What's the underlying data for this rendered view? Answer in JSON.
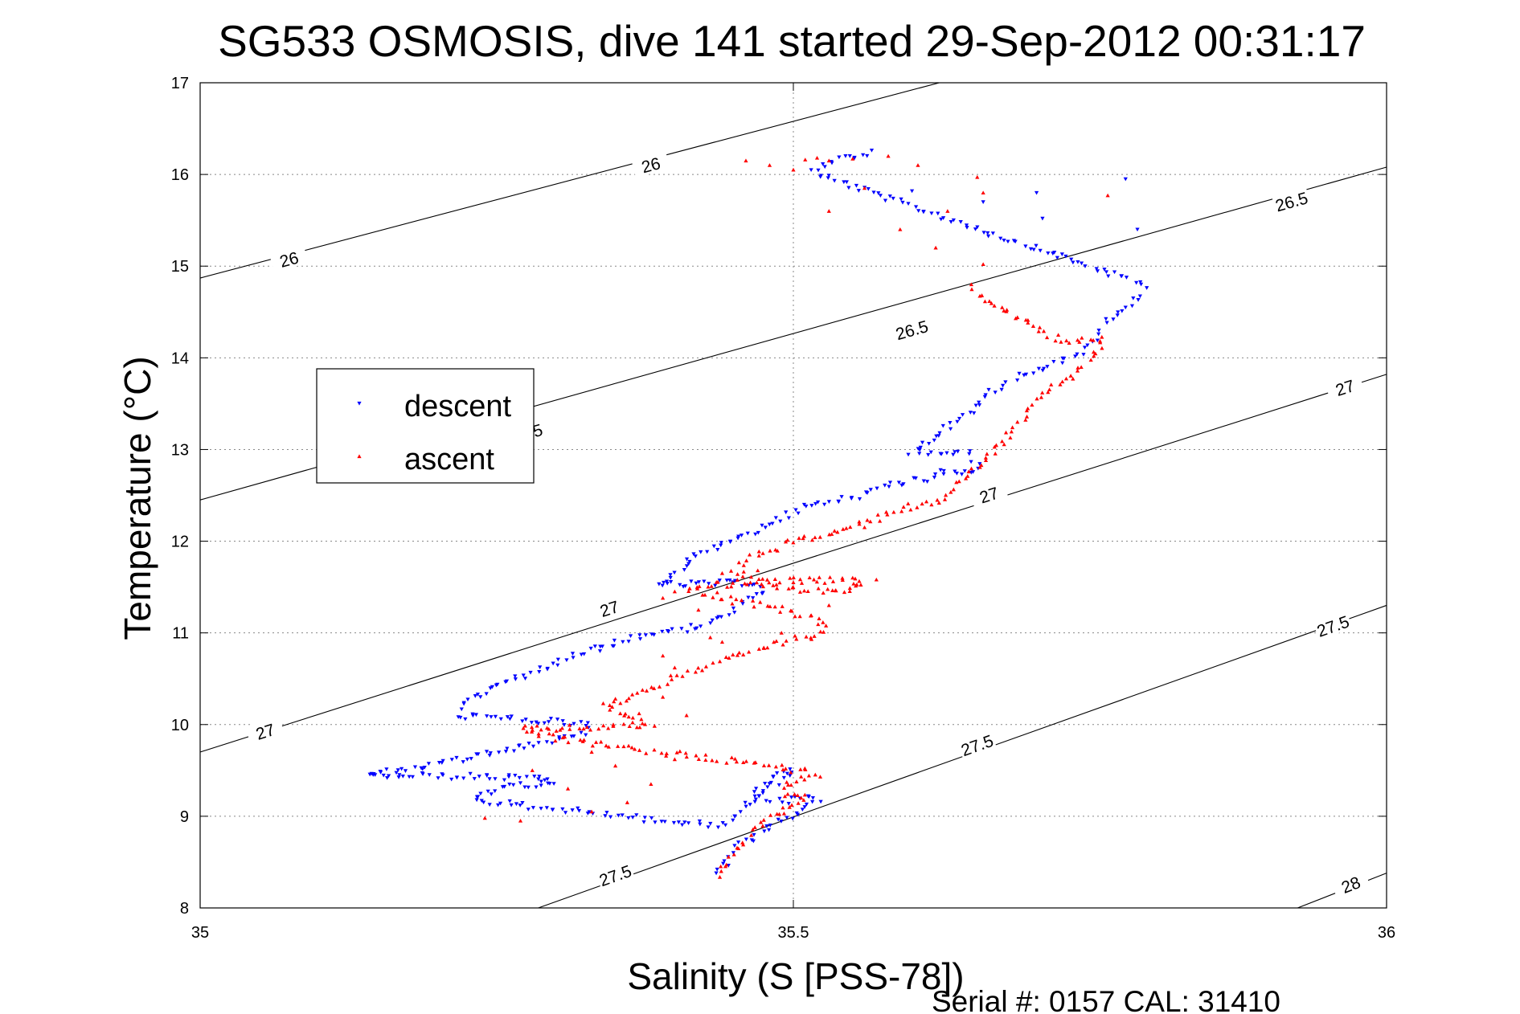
{
  "chart_data": {
    "type": "scatter",
    "title": "SG533 OSMOSIS, dive 141 started 29-Sep-2012 00:31:17",
    "xlabel": "Salinity (S [PSS-78])",
    "ylabel": "Temperature (°C)",
    "xlim": [
      35,
      36
    ],
    "ylim": [
      8,
      17
    ],
    "xticks": [
      "35",
      "35.5",
      "36"
    ],
    "yticks": [
      "8",
      "9",
      "10",
      "11",
      "12",
      "13",
      "14",
      "15",
      "16",
      "17"
    ],
    "grid": true,
    "legend_position": "upper-left",
    "footer": "Serial #: 0157  CAL: 31410",
    "density_contours": [
      {
        "label": "26",
        "level": 26.0,
        "start": [
          35.0,
          14.87
        ],
        "end": [
          35.623,
          17.0
        ],
        "labels_at": [
          [
            35.075,
            15.07
          ],
          [
            35.38,
            16.1
          ]
        ]
      },
      {
        "label": "26.5",
        "level": 26.5,
        "start": [
          35.0,
          12.45
        ],
        "end": [
          36.0,
          16.08
        ],
        "labels_at": [
          [
            35.275,
            13.17
          ],
          [
            35.6,
            14.3
          ],
          [
            35.92,
            15.7
          ]
        ]
      },
      {
        "label": "27",
        "level": 27.0,
        "start": [
          35.0,
          9.7
        ],
        "end": [
          36.0,
          13.82
        ],
        "labels_at": [
          [
            35.055,
            9.92
          ],
          [
            35.345,
            11.26
          ],
          [
            35.665,
            12.5
          ],
          [
            35.965,
            13.67
          ]
        ]
      },
      {
        "label": "27.5",
        "level": 27.5,
        "start": [
          35.285,
          8.0
        ],
        "end": [
          36.0,
          11.3
        ],
        "labels_at": [
          [
            35.35,
            8.35
          ],
          [
            35.655,
            9.77
          ],
          [
            35.955,
            11.07
          ]
        ]
      },
      {
        "label": "28",
        "level": 28.0,
        "start": [
          35.925,
          8.0
        ],
        "end": [
          36.0,
          8.38
        ],
        "labels_at": [
          [
            35.97,
            8.25
          ]
        ]
      }
    ],
    "series": [
      {
        "name": "descent",
        "color": "#0000ff",
        "marker": "triangle-down",
        "path": [
          [
            35.565,
            16.25
          ],
          [
            35.55,
            16.2
          ],
          [
            35.53,
            16.15
          ],
          [
            35.52,
            16.0
          ],
          [
            35.795,
            14.8
          ],
          [
            35.795,
            14.7
          ],
          [
            35.785,
            14.6
          ],
          [
            35.775,
            14.5
          ],
          [
            35.765,
            14.4
          ],
          [
            35.76,
            14.3
          ],
          [
            35.755,
            14.2
          ],
          [
            35.745,
            14.1
          ],
          [
            35.735,
            14.0
          ],
          [
            35.72,
            13.95
          ],
          [
            35.705,
            13.88
          ],
          [
            35.69,
            13.8
          ],
          [
            35.678,
            13.72
          ],
          [
            35.67,
            13.65
          ],
          [
            35.66,
            13.58
          ],
          [
            35.655,
            13.5
          ],
          [
            35.65,
            13.42
          ],
          [
            35.645,
            13.35
          ],
          [
            35.635,
            13.28
          ],
          [
            35.625,
            13.2
          ],
          [
            35.62,
            13.12
          ],
          [
            35.61,
            13.05
          ],
          [
            35.6,
            12.98
          ],
          [
            35.65,
            12.95
          ],
          [
            35.655,
            12.85
          ],
          [
            35.65,
            12.78
          ],
          [
            35.64,
            12.72
          ],
          [
            35.63,
            12.78
          ],
          [
            35.62,
            12.7
          ],
          [
            35.6,
            12.66
          ],
          [
            35.58,
            12.6
          ],
          [
            35.56,
            12.5
          ],
          [
            35.54,
            12.45
          ],
          [
            35.52,
            12.4
          ],
          [
            35.5,
            12.32
          ],
          [
            35.49,
            12.25
          ],
          [
            35.48,
            12.18
          ],
          [
            35.47,
            12.12
          ],
          [
            35.455,
            12.05
          ],
          [
            35.44,
            11.98
          ],
          [
            35.43,
            11.92
          ],
          [
            35.42,
            11.86
          ],
          [
            35.415,
            11.8
          ],
          [
            35.41,
            11.74
          ],
          [
            35.405,
            11.68
          ],
          [
            35.395,
            11.6
          ],
          [
            35.385,
            11.52
          ],
          [
            35.47,
            11.55
          ],
          [
            35.475,
            11.45
          ],
          [
            35.465,
            11.38
          ],
          [
            35.455,
            11.3
          ],
          [
            35.445,
            11.22
          ],
          [
            35.435,
            11.15
          ],
          [
            35.42,
            11.08
          ],
          [
            35.4,
            11.02
          ],
          [
            35.38,
            10.98
          ],
          [
            35.36,
            10.93
          ],
          [
            35.345,
            10.88
          ],
          [
            35.33,
            10.82
          ],
          [
            35.315,
            10.76
          ],
          [
            35.3,
            10.68
          ],
          [
            35.29,
            10.62
          ],
          [
            35.275,
            10.55
          ],
          [
            35.26,
            10.48
          ],
          [
            35.25,
            10.42
          ],
          [
            35.24,
            10.36
          ],
          [
            35.23,
            10.3
          ],
          [
            35.22,
            10.2
          ],
          [
            35.215,
            10.1
          ],
          [
            35.33,
            10.0
          ],
          [
            35.325,
            9.9
          ],
          [
            35.3,
            9.84
          ],
          [
            35.28,
            9.78
          ],
          [
            35.26,
            9.72
          ],
          [
            35.24,
            9.68
          ],
          [
            35.22,
            9.62
          ],
          [
            35.2,
            9.55
          ],
          [
            35.18,
            9.52
          ],
          [
            35.16,
            9.48
          ],
          [
            35.14,
            9.45
          ],
          [
            35.28,
            9.42
          ],
          [
            35.3,
            9.38
          ],
          [
            35.26,
            9.32
          ],
          [
            35.24,
            9.26
          ],
          [
            35.23,
            9.2
          ],
          [
            35.25,
            9.15
          ],
          [
            35.27,
            9.12
          ],
          [
            35.3,
            9.08
          ],
          [
            35.33,
            9.04
          ],
          [
            35.36,
            9.0
          ],
          [
            35.38,
            8.96
          ],
          [
            35.41,
            8.92
          ],
          [
            35.44,
            8.9
          ],
          [
            35.5,
            9.5
          ],
          [
            35.48,
            9.42
          ],
          [
            35.47,
            9.32
          ],
          [
            35.465,
            9.22
          ],
          [
            35.49,
            9.15
          ],
          [
            35.51,
            9.22
          ],
          [
            35.52,
            9.18
          ],
          [
            35.51,
            9.1
          ],
          [
            35.5,
            9.02
          ],
          [
            35.49,
            8.95
          ],
          [
            35.48,
            8.88
          ],
          [
            35.47,
            8.8
          ],
          [
            35.46,
            8.72
          ],
          [
            35.45,
            8.62
          ],
          [
            35.445,
            8.52
          ],
          [
            35.44,
            8.45
          ],
          [
            35.435,
            8.38
          ]
        ],
        "scatter": [
          [
            35.515,
            16.05
          ],
          [
            35.78,
            15.95
          ],
          [
            35.705,
            15.8
          ],
          [
            35.79,
            15.4
          ],
          [
            35.72,
            15.15
          ],
          [
            35.6,
            15.82
          ],
          [
            35.71,
            15.52
          ],
          [
            35.66,
            15.7
          ]
        ]
      },
      {
        "name": "ascent",
        "color": "#ff0000",
        "marker": "triangle-up",
        "path": [
          [
            35.435,
            8.35
          ],
          [
            35.44,
            8.42
          ],
          [
            35.445,
            8.5
          ],
          [
            35.45,
            8.58
          ],
          [
            35.455,
            8.66
          ],
          [
            35.46,
            8.74
          ],
          [
            35.465,
            8.82
          ],
          [
            35.47,
            8.9
          ],
          [
            35.48,
            8.98
          ],
          [
            35.49,
            9.06
          ],
          [
            35.5,
            9.14
          ],
          [
            35.51,
            9.2
          ],
          [
            35.495,
            9.22
          ],
          [
            35.49,
            9.3
          ],
          [
            35.505,
            9.38
          ],
          [
            35.52,
            9.45
          ],
          [
            35.505,
            9.5
          ],
          [
            35.48,
            9.55
          ],
          [
            35.45,
            9.6
          ],
          [
            35.42,
            9.65
          ],
          [
            35.39,
            9.7
          ],
          [
            35.36,
            9.74
          ],
          [
            35.33,
            9.8
          ],
          [
            35.3,
            9.85
          ],
          [
            35.28,
            9.9
          ],
          [
            35.27,
            9.95
          ],
          [
            35.31,
            9.96
          ],
          [
            35.35,
            9.98
          ],
          [
            35.38,
            10.0
          ],
          [
            35.36,
            10.1
          ],
          [
            35.34,
            10.2
          ],
          [
            35.36,
            10.3
          ],
          [
            35.38,
            10.4
          ],
          [
            35.4,
            10.5
          ],
          [
            35.42,
            10.6
          ],
          [
            35.44,
            10.7
          ],
          [
            35.46,
            10.78
          ],
          [
            35.48,
            10.86
          ],
          [
            35.5,
            10.92
          ],
          [
            35.52,
            10.98
          ],
          [
            35.53,
            11.05
          ],
          [
            35.52,
            11.15
          ],
          [
            35.5,
            11.22
          ],
          [
            35.48,
            11.28
          ],
          [
            35.45,
            11.35
          ],
          [
            35.43,
            11.42
          ],
          [
            35.41,
            11.48
          ],
          [
            35.43,
            11.52
          ],
          [
            35.47,
            11.56
          ],
          [
            35.52,
            11.58
          ],
          [
            35.56,
            11.55
          ],
          [
            35.55,
            11.48
          ],
          [
            35.51,
            11.45
          ],
          [
            35.48,
            11.52
          ],
          [
            35.46,
            11.6
          ],
          [
            35.45,
            11.7
          ],
          [
            35.46,
            11.8
          ],
          [
            35.48,
            11.9
          ],
          [
            35.5,
            12.0
          ],
          [
            35.52,
            12.05
          ],
          [
            35.54,
            12.1
          ],
          [
            35.555,
            12.18
          ],
          [
            35.57,
            12.25
          ],
          [
            35.58,
            12.32
          ],
          [
            35.6,
            12.38
          ],
          [
            35.62,
            12.44
          ],
          [
            35.63,
            12.5
          ],
          [
            35.635,
            12.58
          ],
          [
            35.64,
            12.66
          ],
          [
            35.65,
            12.74
          ],
          [
            35.655,
            12.82
          ],
          [
            35.66,
            12.88
          ],
          [
            35.665,
            12.95
          ],
          [
            35.67,
            13.0
          ],
          [
            35.675,
            13.08
          ],
          [
            35.68,
            13.15
          ],
          [
            35.685,
            13.22
          ],
          [
            35.69,
            13.3
          ],
          [
            35.695,
            13.38
          ],
          [
            35.7,
            13.45
          ],
          [
            35.705,
            13.52
          ],
          [
            35.71,
            13.6
          ],
          [
            35.72,
            13.68
          ],
          [
            35.73,
            13.76
          ],
          [
            35.74,
            13.84
          ],
          [
            35.745,
            13.92
          ],
          [
            35.75,
            14.0
          ],
          [
            35.755,
            14.08
          ],
          [
            35.76,
            14.15
          ],
          [
            35.762,
            14.22
          ],
          [
            35.75,
            14.2
          ],
          [
            35.735,
            14.18
          ],
          [
            35.72,
            14.22
          ],
          [
            35.71,
            14.3
          ],
          [
            35.7,
            14.38
          ],
          [
            35.69,
            14.45
          ],
          [
            35.68,
            14.52
          ],
          [
            35.67,
            14.58
          ],
          [
            35.66,
            14.62
          ],
          [
            35.655,
            14.7
          ],
          [
            35.65,
            14.8
          ]
        ],
        "scatter": [
          [
            35.53,
            16.15
          ],
          [
            35.55,
            16.17
          ],
          [
            35.52,
            16.18
          ],
          [
            35.51,
            16.16
          ],
          [
            35.58,
            16.2
          ],
          [
            35.46,
            16.15
          ],
          [
            35.48,
            16.1
          ],
          [
            35.5,
            16.05
          ],
          [
            35.605,
            16.1
          ],
          [
            35.655,
            15.97
          ],
          [
            35.66,
            15.8
          ],
          [
            35.765,
            15.77
          ],
          [
            35.63,
            15.6
          ],
          [
            35.59,
            15.4
          ],
          [
            35.53,
            15.6
          ],
          [
            35.56,
            15.85
          ],
          [
            35.62,
            15.2
          ],
          [
            35.66,
            15.02
          ],
          [
            35.24,
            8.98
          ],
          [
            35.27,
            8.95
          ],
          [
            35.33,
            9.05
          ],
          [
            35.36,
            9.15
          ],
          [
            35.38,
            9.35
          ],
          [
            35.31,
            9.3
          ],
          [
            35.28,
            9.5
          ],
          [
            35.35,
            9.55
          ],
          [
            35.4,
            9.62
          ],
          [
            35.33,
            9.7
          ],
          [
            35.35,
            10.28
          ],
          [
            35.39,
            10.3
          ],
          [
            35.37,
            10.12
          ],
          [
            35.41,
            10.1
          ],
          [
            35.44,
            10.9
          ],
          [
            35.49,
            11.0
          ],
          [
            35.53,
            11.3
          ],
          [
            35.42,
            11.25
          ],
          [
            35.5,
            11.55
          ],
          [
            35.4,
            11.45
          ],
          [
            35.39,
            11.38
          ],
          [
            35.44,
            11.65
          ],
          [
            35.47,
            11.68
          ],
          [
            35.55,
            11.6
          ],
          [
            35.57,
            11.58
          ],
          [
            35.4,
            10.62
          ],
          [
            35.39,
            10.75
          ],
          [
            35.43,
            10.95
          ],
          [
            35.56,
            12.15
          ]
        ]
      }
    ]
  }
}
